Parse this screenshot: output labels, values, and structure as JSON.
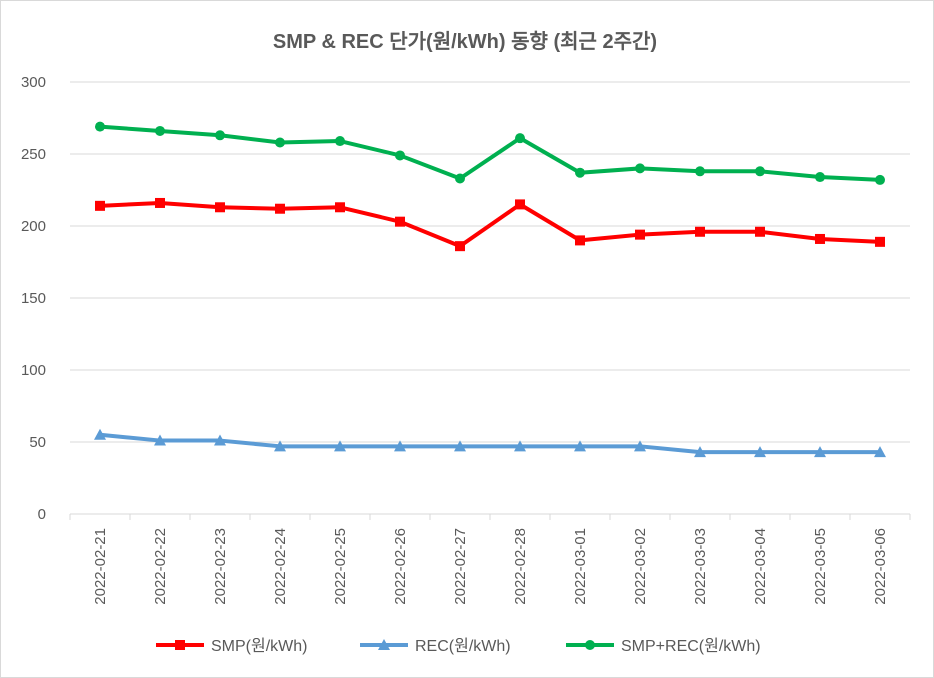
{
  "chart_data": {
    "type": "line",
    "title": "SMP & REC 단가(원/kWh) 동향 (최근 2주간)",
    "xlabel": "",
    "ylabel": "",
    "ylim": [
      0,
      300
    ],
    "yticks": [
      0,
      50,
      100,
      150,
      200,
      250,
      300
    ],
    "ytick_labels": [
      "0",
      "50",
      "100",
      "150",
      "200",
      "250",
      "300"
    ],
    "grid": true,
    "legend_position": "bottom",
    "categories": [
      "2022-02-21",
      "2022-02-22",
      "2022-02-23",
      "2022-02-24",
      "2022-02-25",
      "2022-02-26",
      "2022-02-27",
      "2022-02-28",
      "2022-03-01",
      "2022-03-02",
      "2022-03-03",
      "2022-03-04",
      "2022-03-05",
      "2022-03-06"
    ],
    "series": [
      {
        "name": "SMP(원/kWh)",
        "color": "#ff0000",
        "marker": "square",
        "values": [
          214,
          216,
          213,
          212,
          213,
          203,
          186,
          215,
          190,
          194,
          196,
          196,
          191,
          189
        ]
      },
      {
        "name": "REC(원/kWh)",
        "color": "#5b9bd5",
        "marker": "triangle",
        "values": [
          55,
          51,
          51,
          47,
          47,
          47,
          47,
          47,
          47,
          47,
          43,
          43,
          43,
          43
        ]
      },
      {
        "name": "SMP+REC(원/kWh)",
        "color": "#00b050",
        "marker": "circle",
        "values": [
          269,
          266,
          263,
          258,
          259,
          249,
          233,
          261,
          237,
          240,
          238,
          238,
          234,
          232
        ]
      }
    ]
  }
}
